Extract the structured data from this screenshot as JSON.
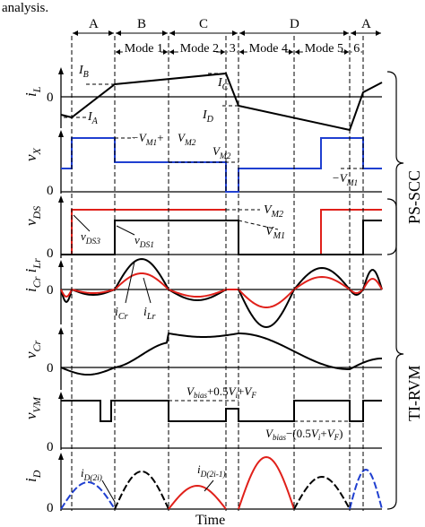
{
  "caption_fragment": "analysis.",
  "segments": [
    "A",
    "B",
    "C",
    "D",
    "A"
  ],
  "modes": [
    "Mode 1",
    "Mode 2",
    "3",
    "Mode 4",
    "Mode 5",
    "6"
  ],
  "groups": [
    "PS-SCC",
    "TI-RVM"
  ],
  "x_axis_label": "Time",
  "zero_label": "0",
  "panels": [
    {
      "id": "iL",
      "name": "i",
      "sub": "L",
      "sub2": ""
    },
    {
      "id": "vX",
      "name": "v",
      "sub": "X",
      "sub2": ""
    },
    {
      "id": "vDS",
      "name": "v",
      "sub": "DS",
      "sub2": ""
    },
    {
      "id": "iCr",
      "name": "i",
      "sub": "Cr",
      "sub2": "i",
      "sub2b": "Lr"
    },
    {
      "id": "vCr",
      "name": "v",
      "sub": "Cr",
      "sub2": ""
    },
    {
      "id": "vVM",
      "name": "v",
      "sub": "VM",
      "sub2": ""
    },
    {
      "id": "iD",
      "name": "i",
      "sub": "D",
      "sub2": ""
    }
  ],
  "annotations": {
    "IA": "I_A",
    "IB": "I_B",
    "IC": "I_C",
    "ID": "I_D",
    "vx_top": "V_M1 + V_M2",
    "vx_mid": "V_M2",
    "vx_low": "V_M1",
    "vds_top": "V_M2",
    "vds_low": "V_M1",
    "vds3": "v_DS3",
    "vds1": "v_DS1",
    "icr": "i_Cr",
    "ilr": "i_Lr",
    "vvm_high": "V_bias + 0.5V_i + V_F",
    "vvm_low": "V_bias − (0.5V_i + V_F)",
    "id_even": "i_D(2i)",
    "id_odd": "i_D(2i-1)"
  },
  "colors": {
    "blue": "#1f3fd0",
    "red": "#e0201a",
    "black": "#000000"
  }
}
